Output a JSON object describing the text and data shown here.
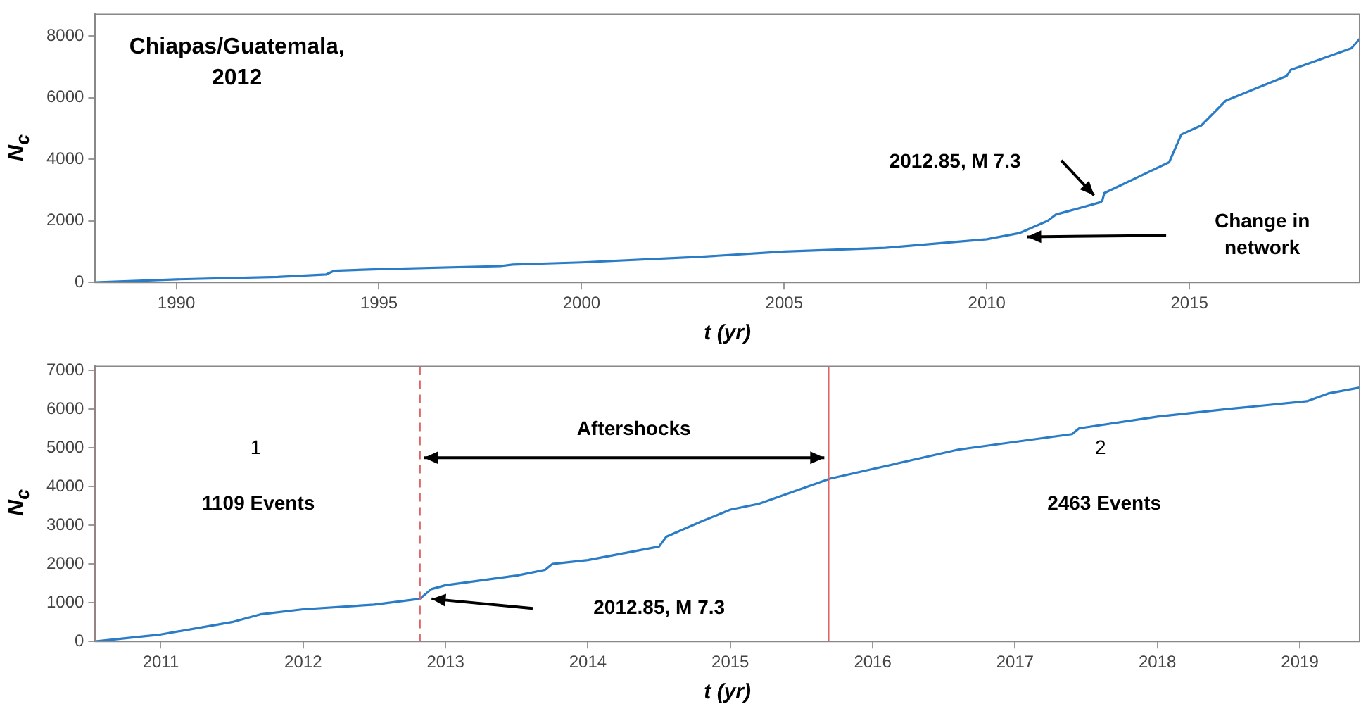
{
  "chart_data": [
    {
      "type": "line",
      "title": "Chiapas/Guatemala, 2012",
      "xlabel": "t (yr)",
      "ylabel": "N$_{c}$",
      "x": [
        1988,
        1990,
        1992.5,
        1993.7,
        1993.9,
        1995,
        1998,
        1998.3,
        2000,
        2002.9,
        2005,
        2007.5,
        2010,
        2010.8,
        2011.5,
        2011.7,
        2012.8,
        2012.85,
        2012.9,
        2013.7,
        2014.5,
        2014.8,
        2015.3,
        2015.9,
        2017.4,
        2017.5,
        2019,
        2019.2
      ],
      "series": [
        {
          "color": "#2a7cc7",
          "values": [
            0,
            100,
            180,
            260,
            380,
            430,
            530,
            580,
            650,
            830,
            1000,
            1120,
            1400,
            1600,
            2000,
            2200,
            2600,
            2650,
            2900,
            3400,
            3900,
            4800,
            5100,
            5900,
            6700,
            6900,
            7600,
            7900
          ]
        }
      ],
      "xlim": [
        1988,
        2019.2
      ],
      "ylim": [
        0,
        8700
      ],
      "xticks": [
        1990,
        1995,
        2000,
        2005,
        2010,
        2015
      ],
      "yticks": [
        0,
        2000,
        4000,
        6000,
        8000
      ],
      "annotations": [
        "2012.85, M 7.3",
        "Change in network"
      ]
    },
    {
      "type": "line",
      "xlabel": "t (yr)",
      "ylabel": "N$_{c}$",
      "x": [
        2010.54,
        2011,
        2011.5,
        2011.7,
        2012,
        2012.5,
        2012.82,
        2012.9,
        2013,
        2013.5,
        2013.7,
        2013.75,
        2014,
        2014.5,
        2014.55,
        2014.8,
        2015,
        2015.2,
        2015.7,
        2016,
        2016.3,
        2016.6,
        2017.4,
        2017.45,
        2018,
        2018.5,
        2019.05,
        2019.2,
        2019.42
      ],
      "series": [
        {
          "color": "#2a7cc7",
          "values": [
            0,
            180,
            500,
            700,
            830,
            950,
            1100,
            1350,
            1450,
            1700,
            1850,
            2000,
            2100,
            2450,
            2700,
            3100,
            3400,
            3550,
            4200,
            4450,
            4700,
            4950,
            5350,
            5500,
            5800,
            6000,
            6200,
            6400,
            6550
          ]
        }
      ],
      "xlim": [
        2010.54,
        2019.42
      ],
      "ylim": [
        0,
        7100
      ],
      "xticks": [
        2011,
        2012,
        2013,
        2014,
        2015,
        2016,
        2017,
        2018,
        2019
      ],
      "yticks": [
        0,
        1000,
        2000,
        3000,
        4000,
        5000,
        6000,
        7000
      ],
      "ref_lines": [
        {
          "axis": "x",
          "value": 2010.54,
          "color": "#e06666"
        },
        {
          "axis": "x",
          "value": 2012.82,
          "color": "#e06666",
          "line_style": "dashed"
        },
        {
          "axis": "x",
          "value": 2015.69,
          "color": "#e06666"
        }
      ],
      "annotations": [
        "1",
        "1109 Events",
        "Aftershocks",
        "2",
        "2463 Events",
        "2012.85, M 7.3"
      ]
    }
  ]
}
